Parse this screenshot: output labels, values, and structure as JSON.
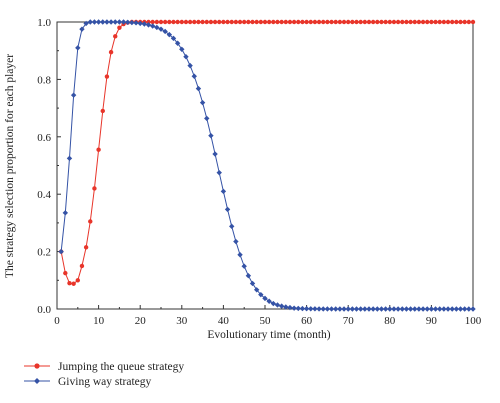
{
  "chart_data": {
    "type": "line",
    "title": "",
    "xlabel": "Evolutionary time (month)",
    "ylabel": "The strategy selection proportion for each player",
    "xlim": [
      0,
      100
    ],
    "ylim": [
      0,
      1.0
    ],
    "x_ticks": [
      "0",
      "10",
      "20",
      "30",
      "40",
      "50",
      "60",
      "70",
      "80",
      "90",
      "100"
    ],
    "y_ticks": [
      "0.0",
      "0.2",
      "0.4",
      "0.6",
      "0.8",
      "1.0"
    ],
    "grid": false,
    "legend_position": "bottom-left",
    "x": [
      1,
      2,
      3,
      4,
      5,
      6,
      7,
      8,
      9,
      10,
      11,
      12,
      13,
      14,
      15,
      16,
      17,
      18,
      19,
      20,
      21,
      22,
      23,
      24,
      25,
      26,
      27,
      28,
      29,
      30,
      31,
      32,
      33,
      34,
      35,
      36,
      37,
      38,
      39,
      40,
      41,
      42,
      43,
      44,
      45,
      46,
      47,
      48,
      49,
      50,
      51,
      52,
      53,
      54,
      55,
      56,
      57,
      58,
      59,
      60,
      61,
      62,
      63,
      64,
      65,
      66,
      67,
      68,
      69,
      70,
      71,
      72,
      73,
      74,
      75,
      76,
      77,
      78,
      79,
      80,
      81,
      82,
      83,
      84,
      85,
      86,
      87,
      88,
      89,
      90,
      91,
      92,
      93,
      94,
      95,
      96,
      97,
      98,
      99,
      100
    ],
    "series": [
      {
        "name": "Jumping the queue strategy",
        "color": "#e8352a",
        "marker": "circle",
        "values": [
          0.2,
          0.125,
          0.09,
          0.088,
          0.1,
          0.15,
          0.215,
          0.305,
          0.42,
          0.555,
          0.69,
          0.81,
          0.895,
          0.95,
          0.98,
          0.993,
          0.998,
          1.0,
          1.0,
          1.0,
          1.0,
          1.0,
          1.0,
          1.0,
          1.0,
          1.0,
          1.0,
          1.0,
          1.0,
          1.0,
          1.0,
          1.0,
          1.0,
          1.0,
          1.0,
          1.0,
          1.0,
          1.0,
          1.0,
          1.0,
          1.0,
          1.0,
          1.0,
          1.0,
          1.0,
          1.0,
          1.0,
          1.0,
          1.0,
          1.0,
          1.0,
          1.0,
          1.0,
          1.0,
          1.0,
          1.0,
          1.0,
          1.0,
          1.0,
          1.0,
          1.0,
          1.0,
          1.0,
          1.0,
          1.0,
          1.0,
          1.0,
          1.0,
          1.0,
          1.0,
          1.0,
          1.0,
          1.0,
          1.0,
          1.0,
          1.0,
          1.0,
          1.0,
          1.0,
          1.0,
          1.0,
          1.0,
          1.0,
          1.0,
          1.0,
          1.0,
          1.0,
          1.0,
          1.0,
          1.0,
          1.0,
          1.0,
          1.0,
          1.0,
          1.0,
          1.0,
          1.0,
          1.0,
          1.0,
          1.0
        ]
      },
      {
        "name": "Giving way strategy",
        "color": "#3553a6",
        "marker": "diamond",
        "values": [
          0.2,
          0.335,
          0.525,
          0.745,
          0.91,
          0.975,
          0.995,
          1.0,
          1.0,
          1.0,
          1.0,
          1.0,
          1.0,
          1.0,
          1.0,
          1.0,
          0.999,
          0.998,
          0.997,
          0.995,
          0.993,
          0.99,
          0.986,
          0.981,
          0.975,
          0.967,
          0.956,
          0.943,
          0.926,
          0.905,
          0.879,
          0.848,
          0.811,
          0.768,
          0.719,
          0.664,
          0.604,
          0.54,
          0.475,
          0.41,
          0.347,
          0.288,
          0.235,
          0.189,
          0.149,
          0.116,
          0.089,
          0.067,
          0.05,
          0.037,
          0.027,
          0.019,
          0.014,
          0.01,
          0.007,
          0.005,
          0.003,
          0.002,
          0.0015,
          0.001,
          0.0007,
          0.0005,
          0.0003,
          0.0002,
          0.0001,
          0.0001,
          0.0,
          0.0,
          0.0,
          0.0,
          0.0,
          0.0,
          0.0,
          0.0,
          0.0,
          0.0,
          0.0,
          0.0,
          0.0,
          0.0,
          0.0,
          0.0,
          0.0,
          0.0,
          0.0,
          0.0,
          0.0,
          0.0,
          0.0,
          0.0,
          0.0,
          0.0,
          0.0,
          0.0,
          0.0,
          0.0,
          0.0,
          0.0,
          0.0,
          0.0
        ]
      }
    ]
  }
}
